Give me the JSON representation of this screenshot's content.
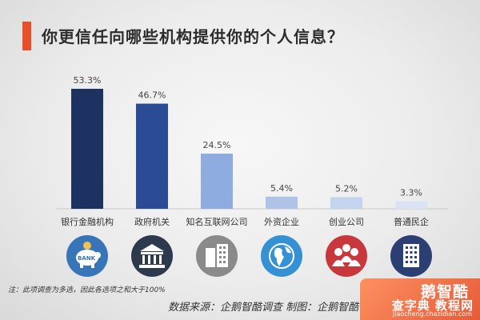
{
  "title": "你更信任向哪些机构提供你的个人信息？",
  "chart_data": {
    "type": "bar",
    "categories": [
      "银行金融机构",
      "政府机关",
      "知名互联网公司",
      "外资企业",
      "创业公司",
      "普通民企"
    ],
    "values": [
      53.3,
      46.7,
      24.5,
      5.4,
      5.2,
      3.3
    ],
    "value_labels": [
      "53.3%",
      "46.7%",
      "24.5%",
      "5.4%",
      "5.2%",
      "3.3%"
    ],
    "bar_colors": [
      "#1e3261",
      "#2b4b95",
      "#8eacdf",
      "#afc3e7",
      "#c5d4ee",
      "#d9e3f3"
    ],
    "icon_colors": [
      "#3875b8",
      "#2d3a4d",
      "#8a8a8a",
      "#3590d4",
      "#c7373c",
      "#2b3f73"
    ],
    "icons": [
      "piggy-bank-icon",
      "government-building-icon",
      "office-buildings-icon",
      "globe-icon",
      "people-group-icon",
      "building-icon"
    ],
    "icon_text": [
      "BANK",
      "",
      "",
      "",
      "",
      ""
    ],
    "grid": false
  },
  "footnote": "注：此项调查为多选，因此各选项之和大于100%",
  "source": "数据来源：企鹅智酷调查    制图：企鹅智酷",
  "watermark": {
    "logo": "鹅智酷",
    "site": "查字典 教程网",
    "url": "jiaocheng.chazidian.com"
  }
}
